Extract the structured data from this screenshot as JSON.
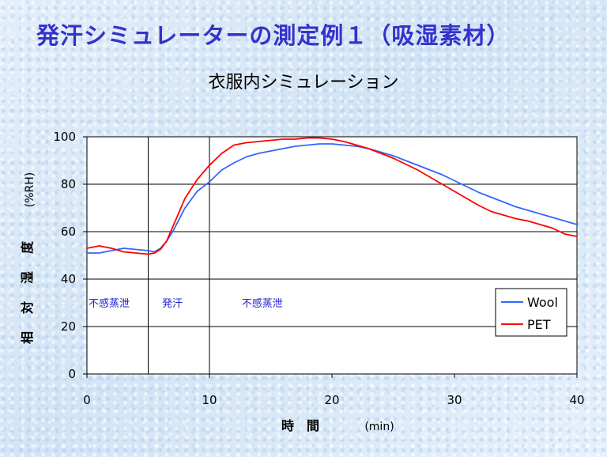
{
  "title": "発汗シミュレーターの測定例１（吸湿素材）",
  "chart_data": {
    "type": "line",
    "title": "衣服内シミュレーション",
    "xlabel": "時　間",
    "xunit": "(min)",
    "ylabel_chars": [
      "相",
      "対",
      "湿",
      "度"
    ],
    "yunit": "(%RH)",
    "xlim": [
      0,
      40
    ],
    "ylim": [
      0,
      100
    ],
    "xticks": [
      0,
      10,
      20,
      30,
      40
    ],
    "yticks": [
      0,
      20,
      40,
      60,
      80,
      100
    ],
    "phase_dividers": [
      5,
      10
    ],
    "phase_labels": [
      {
        "text": "不感蒸泄",
        "x": 0
      },
      {
        "text": "発汗",
        "x": 6
      },
      {
        "text": "不感蒸泄",
        "x": 12.5
      }
    ],
    "legend_position": "bottom-right",
    "grid": true,
    "series": [
      {
        "name": "Wool",
        "color": "#3366ff",
        "points": [
          [
            0,
            51
          ],
          [
            1,
            51
          ],
          [
            2,
            52
          ],
          [
            3,
            53
          ],
          [
            4,
            52.5
          ],
          [
            5,
            52
          ],
          [
            5.5,
            51.5
          ],
          [
            6,
            53
          ],
          [
            6.5,
            56
          ],
          [
            7,
            60
          ],
          [
            7.5,
            65
          ],
          [
            8,
            70
          ],
          [
            9,
            77
          ],
          [
            10,
            81
          ],
          [
            11,
            86
          ],
          [
            12,
            89
          ],
          [
            13,
            91.5
          ],
          [
            14,
            93
          ],
          [
            15,
            94
          ],
          [
            16,
            95
          ],
          [
            17,
            96
          ],
          [
            18,
            96.5
          ],
          [
            19,
            97
          ],
          [
            20,
            97
          ],
          [
            21,
            96.5
          ],
          [
            22,
            96
          ],
          [
            23,
            95
          ],
          [
            24,
            93.5
          ],
          [
            25,
            92
          ],
          [
            26,
            90
          ],
          [
            27,
            88
          ],
          [
            28,
            86
          ],
          [
            29,
            84
          ],
          [
            30,
            81.5
          ],
          [
            31,
            79
          ],
          [
            32,
            76.5
          ],
          [
            33,
            74.5
          ],
          [
            34,
            72.5
          ],
          [
            35,
            70.5
          ],
          [
            36,
            69
          ],
          [
            37,
            67.5
          ],
          [
            38,
            66
          ],
          [
            39,
            64.5
          ],
          [
            40,
            63
          ]
        ]
      },
      {
        "name": "PET",
        "color": "#ff0000",
        "points": [
          [
            0,
            53
          ],
          [
            1,
            54
          ],
          [
            2,
            53
          ],
          [
            3,
            51.5
          ],
          [
            4,
            51
          ],
          [
            5,
            50.5
          ],
          [
            5.5,
            51
          ],
          [
            6,
            52.5
          ],
          [
            6.5,
            56
          ],
          [
            7,
            62
          ],
          [
            7.5,
            68
          ],
          [
            8,
            74
          ],
          [
            9,
            82
          ],
          [
            10,
            88
          ],
          [
            11,
            93
          ],
          [
            12,
            96.5
          ],
          [
            13,
            97.5
          ],
          [
            14,
            98
          ],
          [
            15,
            98.5
          ],
          [
            16,
            99
          ],
          [
            17,
            99
          ],
          [
            18,
            99.5
          ],
          [
            19,
            99.5
          ],
          [
            20,
            99
          ],
          [
            21,
            98
          ],
          [
            22,
            96.5
          ],
          [
            23,
            95
          ],
          [
            24,
            93
          ],
          [
            25,
            91
          ],
          [
            26,
            88.5
          ],
          [
            27,
            86
          ],
          [
            28,
            83
          ],
          [
            29,
            80
          ],
          [
            30,
            77
          ],
          [
            31,
            74
          ],
          [
            32,
            71
          ],
          [
            33,
            68.5
          ],
          [
            34,
            67
          ],
          [
            35,
            65.5
          ],
          [
            36,
            64.5
          ],
          [
            37,
            63
          ],
          [
            38,
            61.5
          ],
          [
            39,
            59
          ],
          [
            40,
            58
          ]
        ]
      }
    ]
  }
}
